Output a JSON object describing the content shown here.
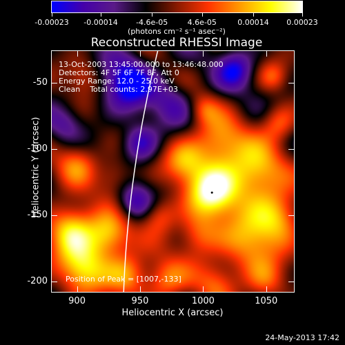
{
  "colorbar": {
    "tick_labels": [
      "-0.00023",
      "-0.00014",
      "-4.6e-05",
      "4.6e-05",
      "0.00014",
      "0.00023"
    ],
    "tick_values": [
      -0.00023,
      -0.00014,
      -4.6e-05,
      4.6e-05,
      0.00014,
      0.00023
    ],
    "range": [
      -0.00023,
      0.00023
    ],
    "unit_label": "(photons cm⁻² s⁻¹ asec⁻²)",
    "colors": [
      "#0000ff",
      "#4400aa",
      "#5a1a88",
      "#000000",
      "#881a00",
      "#ff3300",
      "#ff9900",
      "#ffff00",
      "#ffffff"
    ]
  },
  "chart_data": {
    "type": "heatmap",
    "title": "Reconstructed RHESSI Image",
    "xlabel": "Heliocentric X (arcsec)",
    "ylabel": "Heliocentric Y (arcsec)",
    "xlim": [
      880,
      1072
    ],
    "ylim": [
      -208,
      -26
    ],
    "x_ticks": [
      900,
      950,
      1000,
      1050
    ],
    "y_ticks": [
      -50,
      -100,
      -150,
      -200
    ],
    "annotations": [
      "13-Oct-2003 13:45:00.000 to 13:46:48.000",
      "Detectors: 4F 5F 6F 7F 8F, Att 0",
      "Energy Range: 12.0 - 25.0 keV",
      "Clean    Total counts: 2.97E+03"
    ],
    "peak_label": "Position of Peak = [1007,-133]",
    "peak": [
      1007,
      -133
    ],
    "limb_color": "#ffffff",
    "blobs": [
      {
        "x": 1007,
        "y": -133,
        "v": 1.0,
        "s": 14
      },
      {
        "x": 1040,
        "y": -118,
        "v": 0.85,
        "s": 16
      },
      {
        "x": 1012,
        "y": -95,
        "v": 0.7,
        "s": 14
      },
      {
        "x": 985,
        "y": -110,
        "v": 0.6,
        "s": 12
      },
      {
        "x": 1060,
        "y": -150,
        "v": 0.7,
        "s": 14
      },
      {
        "x": 1035,
        "y": -170,
        "v": 0.65,
        "s": 16
      },
      {
        "x": 995,
        "y": -165,
        "v": 0.55,
        "s": 12
      },
      {
        "x": 965,
        "y": -150,
        "v": 0.5,
        "s": 10
      },
      {
        "x": 895,
        "y": -160,
        "v": 0.85,
        "s": 14
      },
      {
        "x": 925,
        "y": -165,
        "v": 0.75,
        "s": 12
      },
      {
        "x": 905,
        "y": -190,
        "v": 0.8,
        "s": 14
      },
      {
        "x": 940,
        "y": -195,
        "v": 0.65,
        "s": 12
      },
      {
        "x": 970,
        "y": -200,
        "v": 0.55,
        "s": 12
      },
      {
        "x": 1010,
        "y": -200,
        "v": 0.45,
        "s": 12
      },
      {
        "x": 1050,
        "y": -200,
        "v": 0.5,
        "s": 12
      },
      {
        "x": 1060,
        "y": -80,
        "v": 0.5,
        "s": 10
      },
      {
        "x": 1055,
        "y": -45,
        "v": 0.4,
        "s": 8
      },
      {
        "x": 1025,
        "y": -40,
        "v": -0.6,
        "s": 10
      },
      {
        "x": 940,
        "y": -50,
        "v": -0.8,
        "s": 14
      },
      {
        "x": 905,
        "y": -45,
        "v": 0.35,
        "s": 10
      },
      {
        "x": 900,
        "y": -110,
        "v": 0.5,
        "s": 12
      },
      {
        "x": 930,
        "y": -120,
        "v": 0.4,
        "s": 10
      },
      {
        "x": 950,
        "y": -95,
        "v": -0.55,
        "s": 10
      },
      {
        "x": 945,
        "y": -140,
        "v": -0.5,
        "s": 10
      },
      {
        "x": 975,
        "y": -65,
        "v": -0.35,
        "s": 12
      },
      {
        "x": 1000,
        "y": -70,
        "v": 0.35,
        "s": 8
      },
      {
        "x": 890,
        "y": -80,
        "v": -0.3,
        "s": 10
      }
    ]
  },
  "footer": {
    "timestamp": "24-May-2013 17:42"
  }
}
